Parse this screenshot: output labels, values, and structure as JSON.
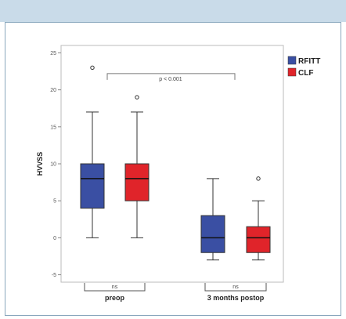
{
  "chart_data": {
    "type": "box",
    "ylabel": "HVVSS",
    "categories": [
      "preop",
      "3 months postop"
    ],
    "yticks": [
      -5,
      0,
      5,
      10,
      15,
      20,
      25
    ],
    "ylim": [
      -6,
      26
    ],
    "series": [
      {
        "name": "RFITT",
        "color": "#3a4fa3",
        "boxes": [
          {
            "min": 0,
            "q1": 4,
            "median": 8,
            "q3": 10,
            "max": 17,
            "outliers": [
              23
            ]
          },
          {
            "min": -3,
            "q1": -2,
            "median": 0,
            "q3": 3,
            "max": 8,
            "outliers": []
          }
        ]
      },
      {
        "name": "CLF",
        "color": "#e0242a",
        "boxes": [
          {
            "min": 0,
            "q1": 5,
            "median": 8,
            "q3": 10,
            "max": 17,
            "outliers": [
              19
            ]
          },
          {
            "min": -3,
            "q1": -2,
            "median": 0,
            "q3": 1.5,
            "max": 5,
            "outliers": [
              8
            ]
          }
        ]
      }
    ],
    "annotations": {
      "top": "p < 0.001",
      "group1": "ns",
      "group2": "ns"
    },
    "legend_position": "top-right",
    "grid": false
  }
}
